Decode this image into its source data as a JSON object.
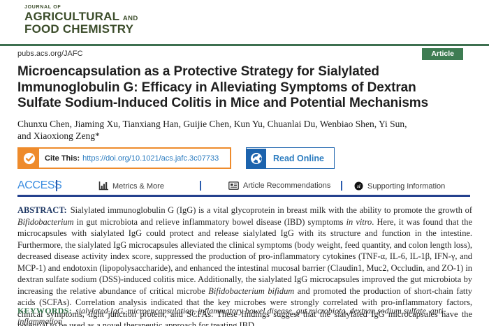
{
  "colors": {
    "brand_green": "#3c4d2b",
    "rule_green": "#3e7050",
    "badge_green": "#3e7c52",
    "accent_orange": "#ee8b2c",
    "link_blue": "#2b7cc0",
    "deep_blue": "#1c63ad",
    "access_blue": "#3b8de0",
    "navy": "#24418e",
    "abstract_label_navy": "#1f3864",
    "keywords_green": "#35704a",
    "text_dark": "#222222"
  },
  "journal": {
    "kicker": "JOURNAL OF",
    "name_line1": "AGRICULTURAL",
    "name_line1_suffix": "AND",
    "name_line2": "FOOD CHEMISTRY",
    "site_url": "pubs.acs.org/JAFC",
    "article_badge": "Article"
  },
  "article": {
    "title_lines": [
      "Microencapsulation as a Protective Strategy for Sialylated",
      "Immunoglobulin G: Efficacy in Alleviating Symptoms of Dextran",
      "Sulfate Sodium-Induced Colitis in Mice and Potential Mechanisms"
    ],
    "authors_lines": [
      "Chunxu Chen, Jiaming Xu, Tianxiang Han, Guijie Chen, Kun Yu, Chuanlai Du, Wenbiao Shen, Yi Sun,",
      "and Xiaoxiong Zeng*"
    ]
  },
  "cite": {
    "label": "Cite This:",
    "doi": "https://doi.org/10.1021/acs.jafc.3c07733",
    "read_online_label": "Read Online"
  },
  "nav": {
    "access_label": "ACCESS",
    "items": [
      {
        "label": "Metrics & More",
        "icon": "bar-chart-icon"
      },
      {
        "label": "Article Recommendations",
        "icon": "article-card-icon"
      },
      {
        "label": "Supporting Information",
        "icon": "si-circle-icon"
      }
    ]
  },
  "abstract": {
    "label": "ABSTRACT:",
    "runs": [
      {
        "t": "Sialylated immunoglobulin G (IgG) is a vital glycoprotein in breast milk with the ability to promote the growth of "
      },
      {
        "t": "Bifidobacterium",
        "i": true
      },
      {
        "t": " in gut microbiota and relieve inflammatory bowel disease (IBD) symptoms "
      },
      {
        "t": "in vitro",
        "i": true
      },
      {
        "t": ". Here, it was found that the microcapsules with sialylated IgG could protect and release sialylated IgG with its structure and function in the intestine. Furthermore, the sialylated IgG microcapsules alleviated the clinical symptoms (body weight, feed quantity, and colon length loss), decreased disease activity index score, suppressed the production of pro-inflammatory cytokines (TNF-α, IL-6, IL-1β, IFN-γ, and MCP-1) and endotoxin (lipopolysaccharide), and enhanced the intestinal mucosal barrier (Claudin1, Muc2, Occludin, and ZO-1) in dextran sulfate sodium (DSS)-induced colitis mice. Additionally, the sialylated IgG microcapsules improved the gut microbiota by increasing the relative abundance of critical microbe "
      },
      {
        "t": "Bifidobacterium bifidum",
        "i": true
      },
      {
        "t": " and promoted the production of short-chain fatty acids (SCFAs). Correlation analysis indicated that the key microbes were strongly correlated with pro-inflammatory factors, clinical symptoms, tight junction protein, and SCFAs. These findings suggest that the sialylated IgG microcapsules have the potential to be used as a novel therapeutic approach for treating IBD."
      }
    ]
  },
  "keywords": {
    "label": "KEYWORDS:",
    "text": "sialylated IgG, microencapsulation, inflammatory bowel disease, gut microbiota, dextran sodium sulfate, anti-inflammation"
  }
}
